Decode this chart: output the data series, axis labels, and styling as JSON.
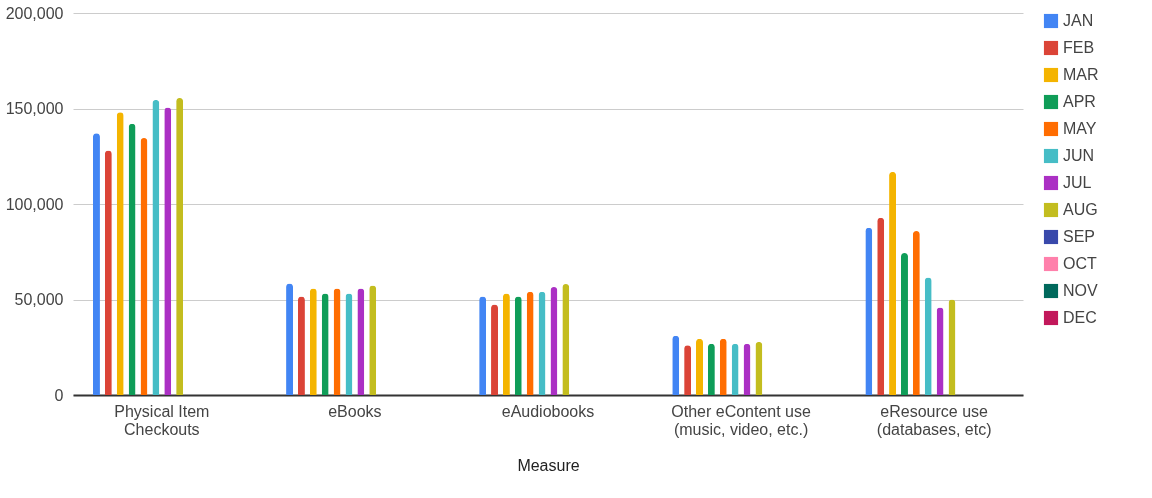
{
  "chart_data": {
    "type": "bar",
    "xlabel": "Measure",
    "categories": [
      "Physical Item\nCheckouts",
      "eBooks",
      "eAudiobooks",
      "Other eContent use\n(music, video, etc.)",
      "eResource use\n(databases, etc)"
    ],
    "series": [
      {
        "name": "JAN",
        "color": "#4285f4",
        "values": [
          137000,
          58400,
          51600,
          31000,
          87600
        ]
      },
      {
        "name": "FEB",
        "color": "#db4437",
        "values": [
          128000,
          51600,
          47400,
          26100,
          92800
        ]
      },
      {
        "name": "MAR",
        "color": "#f4b400",
        "values": [
          148000,
          55700,
          53100,
          29400,
          116800
        ]
      },
      {
        "name": "APR",
        "color": "#0f9d58",
        "values": [
          142000,
          53100,
          51600,
          26800,
          74300
        ]
      },
      {
        "name": "MAY",
        "color": "#ff6d01",
        "values": [
          134500,
          55700,
          54100,
          29400,
          85800
        ]
      },
      {
        "name": "JUN",
        "color": "#46bdc6",
        "values": [
          154500,
          53100,
          54100,
          26800,
          61500
        ]
      },
      {
        "name": "JUL",
        "color": "#ab30c4",
        "values": [
          150500,
          55700,
          56500,
          26800,
          45800
        ]
      },
      {
        "name": "AUG",
        "color": "#c3bd1f",
        "values": [
          155500,
          57300,
          58100,
          27800,
          50000
        ]
      },
      {
        "name": "SEP",
        "color": "#3949ab",
        "values": [
          null,
          null,
          null,
          null,
          null
        ]
      },
      {
        "name": "OCT",
        "color": "#ff80ab",
        "values": [
          null,
          null,
          null,
          null,
          null
        ]
      },
      {
        "name": "NOV",
        "color": "#00695c",
        "values": [
          null,
          null,
          null,
          null,
          null
        ]
      },
      {
        "name": "DEC",
        "color": "#c2185b",
        "values": [
          null,
          null,
          null,
          null,
          null
        ]
      }
    ],
    "ylim": [
      0,
      200000
    ],
    "yticks": [
      0,
      {
        "value": 50000,
        "label": "50,000"
      },
      {
        "value": 100000,
        "label": "100,000"
      },
      {
        "value": 150000,
        "label": "150,000"
      },
      {
        "value": 200000,
        "label": "200,000"
      }
    ],
    "grid": "y",
    "legend": "right"
  }
}
